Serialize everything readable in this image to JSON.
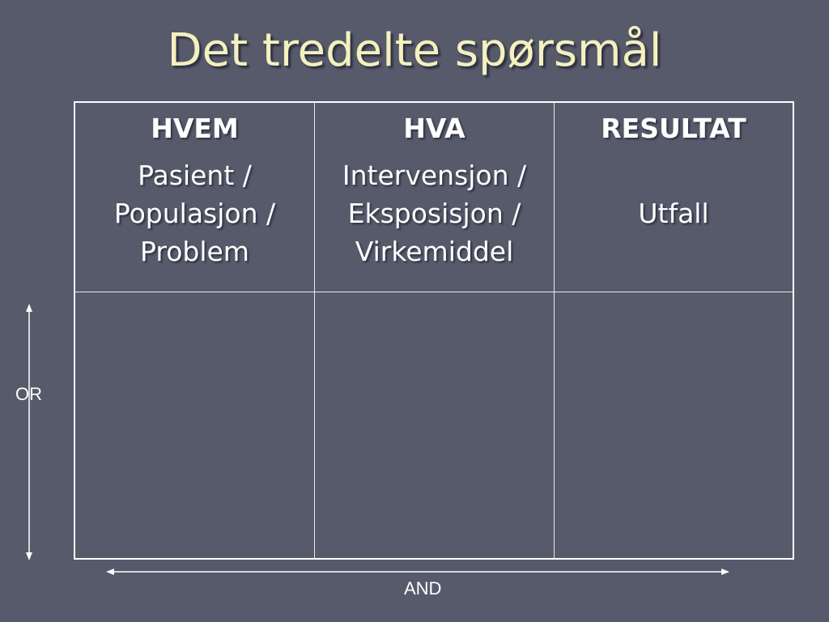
{
  "title": "Det tredelte spørsmål",
  "columns": [
    {
      "header": "HVEM",
      "body": "Pasient / Populasjon / Problem"
    },
    {
      "header": "HVA",
      "body": "Intervensjon / Eksposisjon / Virkemiddel"
    },
    {
      "header": "RESULTAT",
      "body": "Utfall"
    }
  ],
  "axes": {
    "vertical_label": "OR",
    "horizontal_label": "AND"
  }
}
